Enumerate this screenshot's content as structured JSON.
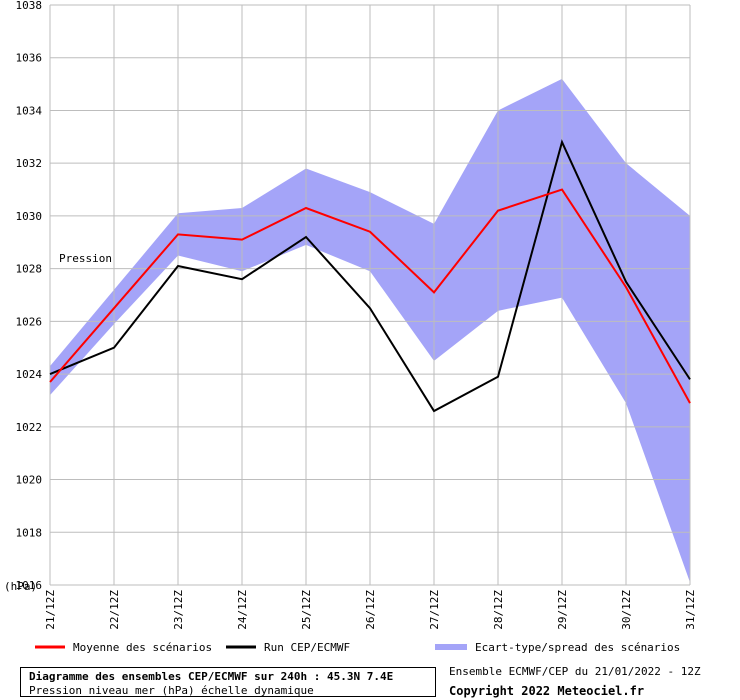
{
  "chart_data": {
    "type": "line",
    "title": "Diagramme des ensembles CEP/ECMWF sur 240h : 45.3N 7.4E",
    "subtitle": "Pression niveau mer (hPa) échelle dynamique",
    "ylabel": "(hPa)",
    "inplot_label": "Pression",
    "ylim": [
      1016,
      1038
    ],
    "yticks": [
      "1016",
      "1018",
      "1020",
      "1022",
      "1024",
      "1026",
      "1028",
      "1030",
      "1032",
      "1034",
      "1036",
      "1038"
    ],
    "categories": [
      "21/12Z",
      "22/12Z",
      "23/12Z",
      "24/12Z",
      "25/12Z",
      "26/12Z",
      "27/12Z",
      "28/12Z",
      "29/12Z",
      "30/12Z",
      "31/12Z"
    ],
    "grid": true,
    "legend_position": "bottom",
    "series": [
      {
        "name": "Moyenne des scénarios",
        "color": "#ff0000",
        "values": [
          1023.7,
          1026.5,
          1029.3,
          1029.1,
          1030.3,
          1029.4,
          1027.1,
          1030.2,
          1031.0,
          1027.3,
          1022.9
        ]
      },
      {
        "name": "Run CEP/ECMWF",
        "color": "#000000",
        "values": [
          1024.0,
          1025.0,
          1028.1,
          1027.6,
          1029.2,
          1026.5,
          1022.6,
          1023.9,
          1032.8,
          1027.5,
          1023.8
        ]
      },
      {
        "name": "Ecart-type/spread des scénarios",
        "color": "#a4a4f8",
        "upper": [
          1024.3,
          1027.2,
          1030.1,
          1030.3,
          1031.8,
          1030.9,
          1029.7,
          1034.0,
          1035.2,
          1032.0,
          1030.0
        ],
        "lower": [
          1023.2,
          1025.9,
          1028.5,
          1027.9,
          1028.9,
          1027.9,
          1024.5,
          1026.4,
          1026.9,
          1022.9,
          1016.1
        ]
      }
    ]
  },
  "footer": {
    "run_info": "Ensemble ECMWF/CEP du 21/01/2022 - 12Z",
    "copyright": "Copyright 2022 Meteociel.fr"
  }
}
